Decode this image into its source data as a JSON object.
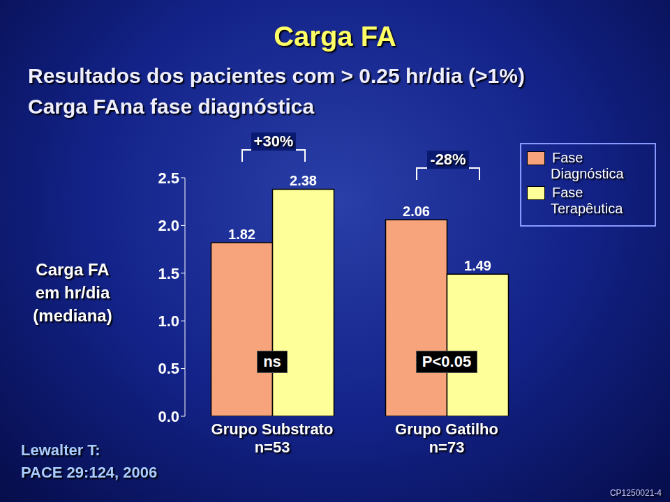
{
  "chart_data": {
    "type": "bar",
    "title": "Carga FA",
    "subtitle": [
      "Resultados dos pacientes com > 0.25 hr/dia (>1%)",
      "Carga FAna fase diagnóstica"
    ],
    "y_label": "Carga FA em hr/dia (mediana)",
    "categories": [
      "Grupo Substrato n=53",
      "Grupo Gatilho n=73"
    ],
    "series": [
      {
        "name": "Fase Diagnóstica",
        "color": "#f7a47c",
        "values": [
          1.82,
          2.06
        ]
      },
      {
        "name": "Fase Terapêutica",
        "color": "#ffff99",
        "values": [
          2.38,
          1.49
        ]
      }
    ],
    "ylim": [
      0,
      2.5
    ],
    "yticks": [
      {
        "value": 0,
        "label": "0.0"
      },
      0.5,
      {
        "value": 1,
        "label": "1.0"
      },
      1.5,
      {
        "value": 2,
        "label": "2.0"
      },
      2.5
    ],
    "data_labels": true,
    "legend": "upper right",
    "annotations": {
      "changes": [
        "+30%",
        "-28%"
      ],
      "significance": [
        "ns",
        "P<0.05"
      ],
      "source": "Lewalter T: PACE 29:124, 2006",
      "code": "CP1250021-4"
    }
  }
}
